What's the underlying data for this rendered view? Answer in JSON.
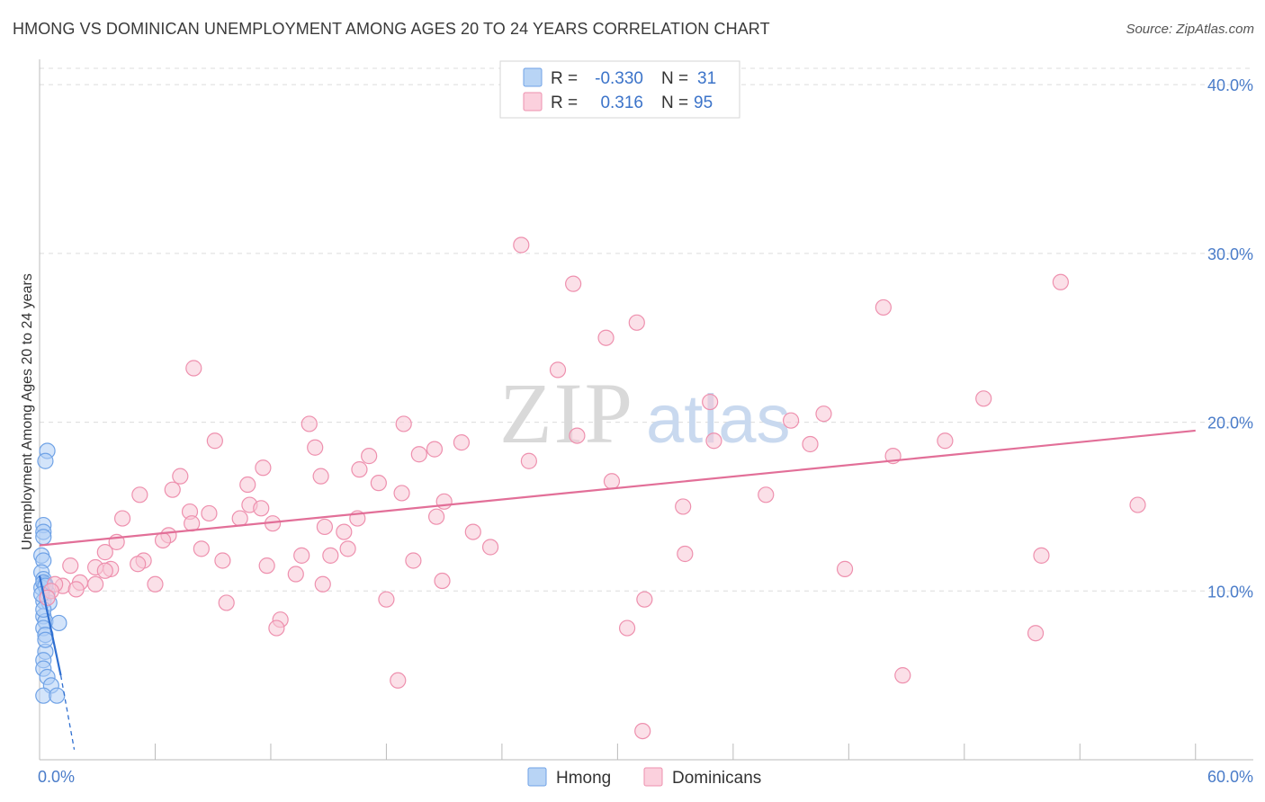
{
  "header": {
    "title": "HMONG VS DOMINICAN UNEMPLOYMENT AMONG AGES 20 TO 24 YEARS CORRELATION CHART",
    "source": "Source: ZipAtlas.com"
  },
  "watermark": {
    "zip": "ZIP",
    "atlas": "atlas"
  },
  "legend": {
    "rows": [
      {
        "r_label": "R =",
        "r_value": "-0.330",
        "n_label": "N =",
        "n_value": "31",
        "color": "#9ec3f0"
      },
      {
        "r_label": "R =",
        "r_value": "0.316",
        "n_label": "N =",
        "n_value": "95",
        "color": "#f5b1c6"
      }
    ]
  },
  "bottom_legend": [
    {
      "label": "Hmong",
      "color": "#9ec3f0"
    },
    {
      "label": "Dominicans",
      "color": "#f5b1c6"
    }
  ],
  "chart_data": {
    "type": "scatter",
    "ylabel": "Unemployment Among Ages 20 to 24 years",
    "x_ticks": [
      {
        "value": 0,
        "label": "0.0%"
      },
      {
        "value": 60,
        "label": "60.0%"
      }
    ],
    "y_ticks": [
      {
        "value": 10,
        "label": "10.0%"
      },
      {
        "value": 20,
        "label": "20.0%"
      },
      {
        "value": 30,
        "label": "30.0%"
      },
      {
        "value": 40,
        "label": "40.0%"
      }
    ],
    "xlim": [
      0,
      63
    ],
    "ylim": [
      0,
      41.5
    ],
    "grid": true,
    "series": [
      {
        "name": "Hmong",
        "color": "#6fa2e6",
        "fill": "#aecdf5",
        "trend": {
          "x0": 0,
          "y0": 10.9,
          "x1": 1.1,
          "y1": 5.0,
          "dash_to_x": 1.8,
          "dash_to_y": 0.6,
          "color": "#2f6fd0"
        },
        "points": [
          [
            0.4,
            18.3
          ],
          [
            0.3,
            17.7
          ],
          [
            0.2,
            13.9
          ],
          [
            0.2,
            13.5
          ],
          [
            0.2,
            13.2
          ],
          [
            0.1,
            12.1
          ],
          [
            0.2,
            11.8
          ],
          [
            0.1,
            11.1
          ],
          [
            0.2,
            10.7
          ],
          [
            0.3,
            10.4
          ],
          [
            0.1,
            10.2
          ],
          [
            0.4,
            9.9
          ],
          [
            0.2,
            9.4
          ],
          [
            0.5,
            9.3
          ],
          [
            0.2,
            8.5
          ],
          [
            0.3,
            8.2
          ],
          [
            1.0,
            8.1
          ],
          [
            0.2,
            7.8
          ],
          [
            0.3,
            7.4
          ],
          [
            0.3,
            6.4
          ],
          [
            0.2,
            5.9
          ],
          [
            0.2,
            5.4
          ],
          [
            0.4,
            4.9
          ],
          [
            0.6,
            4.4
          ],
          [
            0.2,
            3.8
          ],
          [
            0.9,
            3.8
          ],
          [
            0.2,
            10.5
          ],
          [
            0.3,
            10.3
          ],
          [
            0.1,
            9.8
          ],
          [
            0.2,
            8.9
          ],
          [
            0.3,
            7.1
          ]
        ]
      },
      {
        "name": "Dominicans",
        "color": "#ee90ae",
        "fill": "#f8c7d6",
        "trend": {
          "x0": 0,
          "y0": 12.7,
          "x1": 60,
          "y1": 19.5,
          "color": "#e26f98"
        },
        "points": [
          [
            25.0,
            30.5
          ],
          [
            27.7,
            28.2
          ],
          [
            53.0,
            28.3
          ],
          [
            43.8,
            26.8
          ],
          [
            31.0,
            25.9
          ],
          [
            29.4,
            25.0
          ],
          [
            8.0,
            23.2
          ],
          [
            26.9,
            23.1
          ],
          [
            49.0,
            21.4
          ],
          [
            34.8,
            21.2
          ],
          [
            40.7,
            20.5
          ],
          [
            14.0,
            19.9
          ],
          [
            18.9,
            19.9
          ],
          [
            39.0,
            20.1
          ],
          [
            27.9,
            19.2
          ],
          [
            9.1,
            18.9
          ],
          [
            21.9,
            18.8
          ],
          [
            35.0,
            18.9
          ],
          [
            47.0,
            18.9
          ],
          [
            14.3,
            18.5
          ],
          [
            20.5,
            18.4
          ],
          [
            40.0,
            18.7
          ],
          [
            17.1,
            18.0
          ],
          [
            19.7,
            18.1
          ],
          [
            44.3,
            18.0
          ],
          [
            25.4,
            17.7
          ],
          [
            11.6,
            17.3
          ],
          [
            16.6,
            17.2
          ],
          [
            7.3,
            16.8
          ],
          [
            14.6,
            16.8
          ],
          [
            29.7,
            16.5
          ],
          [
            10.8,
            16.3
          ],
          [
            17.6,
            16.4
          ],
          [
            6.9,
            16.0
          ],
          [
            5.2,
            15.7
          ],
          [
            18.8,
            15.8
          ],
          [
            37.7,
            15.7
          ],
          [
            57.0,
            15.1
          ],
          [
            33.4,
            15.0
          ],
          [
            10.9,
            15.1
          ],
          [
            11.5,
            14.9
          ],
          [
            7.8,
            14.7
          ],
          [
            8.8,
            14.6
          ],
          [
            21.0,
            15.3
          ],
          [
            4.3,
            14.3
          ],
          [
            10.4,
            14.3
          ],
          [
            16.5,
            14.3
          ],
          [
            20.6,
            14.4
          ],
          [
            12.1,
            14.0
          ],
          [
            7.9,
            14.0
          ],
          [
            14.8,
            13.8
          ],
          [
            15.8,
            13.5
          ],
          [
            22.5,
            13.5
          ],
          [
            6.7,
            13.3
          ],
          [
            6.4,
            13.0
          ],
          [
            4.0,
            12.9
          ],
          [
            8.4,
            12.5
          ],
          [
            16.0,
            12.5
          ],
          [
            23.4,
            12.6
          ],
          [
            3.4,
            12.3
          ],
          [
            13.6,
            12.1
          ],
          [
            15.1,
            12.1
          ],
          [
            33.5,
            12.2
          ],
          [
            52.0,
            12.1
          ],
          [
            5.4,
            11.8
          ],
          [
            9.5,
            11.8
          ],
          [
            19.4,
            11.8
          ],
          [
            2.9,
            11.4
          ],
          [
            3.7,
            11.3
          ],
          [
            1.6,
            11.5
          ],
          [
            5.1,
            11.6
          ],
          [
            11.8,
            11.5
          ],
          [
            3.4,
            11.2
          ],
          [
            41.8,
            11.3
          ],
          [
            13.3,
            11.0
          ],
          [
            20.9,
            10.6
          ],
          [
            2.1,
            10.5
          ],
          [
            14.7,
            10.4
          ],
          [
            6.0,
            10.4
          ],
          [
            1.2,
            10.3
          ],
          [
            0.8,
            10.4
          ],
          [
            2.9,
            10.4
          ],
          [
            1.9,
            10.1
          ],
          [
            0.6,
            10.0
          ],
          [
            0.4,
            9.6
          ],
          [
            9.7,
            9.3
          ],
          [
            18.0,
            9.5
          ],
          [
            31.4,
            9.5
          ],
          [
            12.5,
            8.3
          ],
          [
            12.3,
            7.8
          ],
          [
            30.5,
            7.8
          ],
          [
            51.7,
            7.5
          ],
          [
            18.6,
            4.7
          ],
          [
            44.8,
            5.0
          ],
          [
            31.3,
            1.7
          ]
        ]
      }
    ]
  }
}
